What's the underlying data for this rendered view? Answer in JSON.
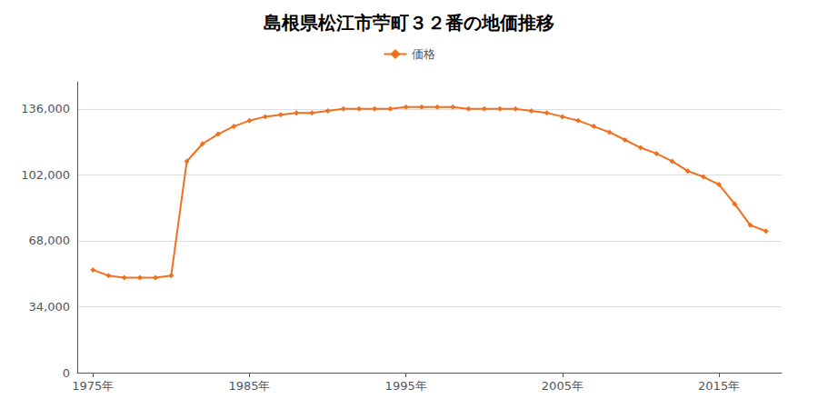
{
  "chart_data": {
    "type": "line",
    "title": "島根県松江市苧町３２番の地価推移",
    "series": [
      {
        "name": "価格",
        "color": "#f07020",
        "marker": "diamond",
        "line_style": "solid",
        "values": [
          53000,
          50000,
          49000,
          49000,
          49000,
          50000,
          109000,
          118000,
          123000,
          127000,
          130000,
          132000,
          133000,
          134000,
          134000,
          135000,
          136000,
          136000,
          136000,
          136000,
          137000,
          137000,
          137000,
          137000,
          136000,
          136000,
          136000,
          136000,
          135000,
          134000,
          132000,
          130000,
          127000,
          124000,
          120000,
          116000,
          113000,
          109000,
          104000,
          101000,
          97000,
          87000,
          76000,
          73000
        ]
      }
    ],
    "x": [
      1975,
      1976,
      1977,
      1978,
      1979,
      1980,
      1981,
      1982,
      1983,
      1984,
      1985,
      1986,
      1987,
      1988,
      1989,
      1990,
      1991,
      1992,
      1993,
      1994,
      1995,
      1996,
      1997,
      1998,
      1999,
      2000,
      2001,
      2002,
      2003,
      2004,
      2005,
      2006,
      2007,
      2008,
      2009,
      2010,
      2011,
      2012,
      2013,
      2014,
      2015,
      2016,
      2017,
      2018
    ],
    "xlim": [
      1974,
      2019
    ],
    "xticks": [
      {
        "value": 1975,
        "label": "1975年"
      },
      {
        "value": 1985,
        "label": "1985年"
      },
      {
        "value": 1995,
        "label": "1995年"
      },
      {
        "value": 2005,
        "label": "2005年"
      },
      {
        "value": 2015,
        "label": "2015年"
      }
    ],
    "ylim": [
      0,
      150000
    ],
    "yticks": [
      0,
      {
        "value": 34000,
        "label": "34,000"
      },
      {
        "value": 68000,
        "label": "68,000"
      },
      {
        "value": 102000,
        "label": "102,000"
      },
      {
        "value": 136000,
        "label": "136,000"
      }
    ],
    "grid": true,
    "legend": "top"
  }
}
